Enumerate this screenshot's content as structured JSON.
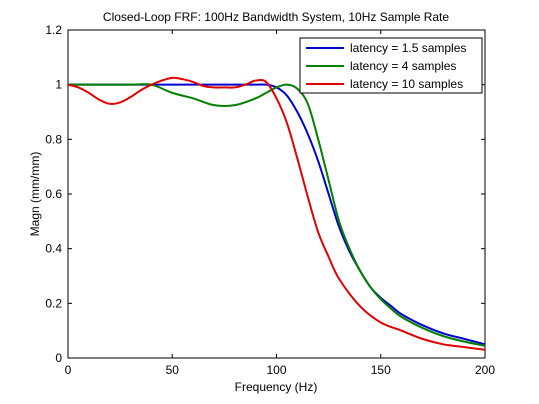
{
  "chart_data": {
    "type": "line",
    "title": "Closed-Loop FRF: 100Hz Bandwidth System, 10Hz Sample Rate",
    "xlabel": "Frequency (Hz)",
    "ylabel": "Magn (mm/mm)",
    "xlim": [
      0,
      200
    ],
    "ylim": [
      0,
      1.2
    ],
    "xticks": [
      "0",
      "50",
      "100",
      "150",
      "200"
    ],
    "yticks": [
      "0",
      "0.2",
      "0.4",
      "0.6",
      "0.8",
      "1",
      "1.2"
    ],
    "grid": false,
    "legend_position": "top-right",
    "series": [
      {
        "name": "latency = 1.5 samples",
        "color": "#0000cc",
        "x": [
          0,
          10,
          20,
          30,
          40,
          50,
          60,
          70,
          80,
          90,
          95,
          100,
          105,
          110,
          115,
          120,
          125,
          130,
          135,
          140,
          145,
          150,
          155,
          160,
          170,
          180,
          190,
          200
        ],
        "y": [
          1.0,
          1.0,
          1.0,
          1.0,
          1.0,
          1.0,
          1.0,
          1.0,
          1.0,
          1.0,
          1.0,
          0.99,
          0.96,
          0.9,
          0.82,
          0.72,
          0.6,
          0.48,
          0.39,
          0.32,
          0.26,
          0.22,
          0.19,
          0.16,
          0.12,
          0.09,
          0.07,
          0.05
        ]
      },
      {
        "name": "latency = 4 samples",
        "color": "#007f00",
        "x": [
          0,
          10,
          20,
          30,
          40,
          50,
          60,
          70,
          80,
          90,
          95,
          100,
          105,
          110,
          115,
          120,
          125,
          130,
          135,
          140,
          145,
          150,
          155,
          160,
          170,
          180,
          190,
          200
        ],
        "y": [
          1.0,
          1.0,
          1.0,
          1.0,
          1.0,
          0.97,
          0.95,
          0.925,
          0.925,
          0.95,
          0.97,
          0.99,
          1.0,
          0.985,
          0.93,
          0.8,
          0.65,
          0.5,
          0.4,
          0.32,
          0.26,
          0.215,
          0.18,
          0.15,
          0.11,
          0.08,
          0.06,
          0.045
        ]
      },
      {
        "name": "latency = 10 samples",
        "color": "#e00000",
        "x": [
          0,
          5,
          10,
          15,
          20,
          25,
          30,
          35,
          40,
          45,
          50,
          55,
          60,
          65,
          70,
          75,
          80,
          85,
          90,
          95,
          100,
          105,
          110,
          115,
          120,
          125,
          130,
          140,
          150,
          160,
          170,
          180,
          190,
          200
        ],
        "y": [
          1.0,
          0.99,
          0.97,
          0.945,
          0.93,
          0.935,
          0.955,
          0.98,
          1.0,
          1.015,
          1.025,
          1.02,
          1.01,
          0.995,
          0.99,
          0.99,
          0.99,
          1.0,
          1.015,
          1.01,
          0.95,
          0.86,
          0.73,
          0.59,
          0.46,
          0.37,
          0.29,
          0.19,
          0.13,
          0.1,
          0.07,
          0.05,
          0.04,
          0.03
        ]
      }
    ]
  }
}
